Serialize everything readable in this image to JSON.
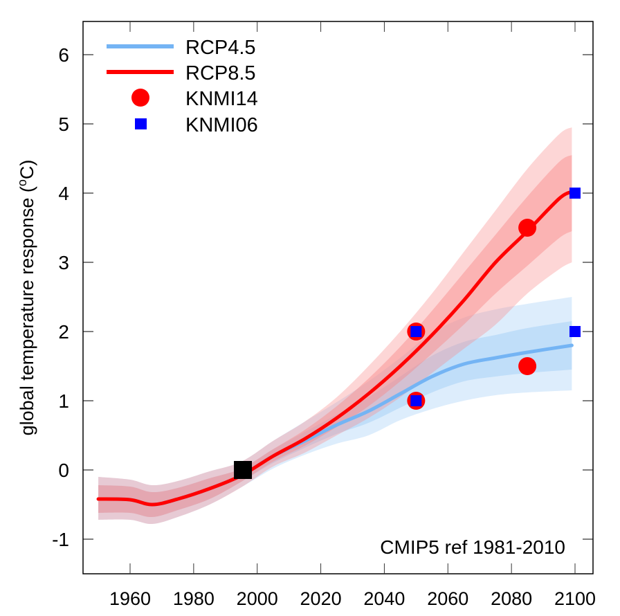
{
  "chart_data": {
    "type": "line",
    "title": "",
    "xlabel": "",
    "ylabel": "global temperature response (°C)",
    "ylabel_parts": {
      "pre": "global temperature response (",
      "sup": "o",
      "post": "C)"
    },
    "xlim": [
      1945,
      2106
    ],
    "ylim": [
      -1.5,
      6.5
    ],
    "xticks": [
      1960,
      1980,
      2000,
      2020,
      2040,
      2060,
      2080,
      2100
    ],
    "yticks": [
      -1,
      0,
      1,
      2,
      3,
      4,
      5,
      6
    ],
    "grid": false,
    "annotation": "CMIP5 ref 1981-2010",
    "legend_position": "top-left",
    "legend": [
      {
        "label": "RCP4.5",
        "kind": "line",
        "color": "#74b4f4"
      },
      {
        "label": "RCP8.5",
        "kind": "line",
        "color": "#ff0000"
      },
      {
        "label": "KNMI14",
        "kind": "circle",
        "color": "#ff0000"
      },
      {
        "label": "KNMI06",
        "kind": "square",
        "color": "#0000ff"
      }
    ],
    "series": [
      {
        "name": "RCP4.5",
        "color": "#74b4f4",
        "band_color": "#9ecbf7",
        "x": [
          1950,
          1960,
          1967,
          1975,
          1985,
          1995,
          2005,
          2015,
          2025,
          2035,
          2045,
          2055,
          2065,
          2075,
          2085,
          2099
        ],
        "y": [
          -0.42,
          -0.43,
          -0.5,
          -0.42,
          -0.27,
          -0.08,
          0.2,
          0.42,
          0.65,
          0.85,
          1.1,
          1.35,
          1.53,
          1.62,
          1.7,
          1.8
        ],
        "lo_outer": [
          -0.72,
          -0.72,
          -0.78,
          -0.68,
          -0.5,
          -0.25,
          0.02,
          0.22,
          0.38,
          0.5,
          0.72,
          0.88,
          1.0,
          1.08,
          1.12,
          1.15
        ],
        "lo_inner": [
          -0.62,
          -0.62,
          -0.68,
          -0.58,
          -0.42,
          -0.17,
          0.1,
          0.32,
          0.52,
          0.68,
          0.9,
          1.12,
          1.28,
          1.35,
          1.4,
          1.45
        ],
        "hi_inner": [
          -0.22,
          -0.24,
          -0.32,
          -0.26,
          -0.12,
          0.02,
          0.3,
          0.55,
          0.8,
          1.05,
          1.35,
          1.65,
          1.85,
          1.95,
          2.05,
          2.15
        ],
        "hi_outer": [
          -0.1,
          -0.14,
          -0.22,
          -0.16,
          -0.02,
          0.12,
          0.42,
          0.7,
          0.98,
          1.28,
          1.62,
          1.98,
          2.2,
          2.32,
          2.4,
          2.5
        ]
      },
      {
        "name": "RCP8.5",
        "color": "#ff0000",
        "band_color": "#f88a8a",
        "x": [
          1950,
          1960,
          1967,
          1975,
          1985,
          1995,
          2005,
          2015,
          2025,
          2035,
          2045,
          2055,
          2065,
          2075,
          2085,
          2095,
          2099
        ],
        "y": [
          -0.42,
          -0.43,
          -0.5,
          -0.42,
          -0.27,
          -0.08,
          0.2,
          0.45,
          0.75,
          1.1,
          1.5,
          1.95,
          2.45,
          3.0,
          3.45,
          3.92,
          4.02
        ],
        "lo_outer": [
          -0.72,
          -0.72,
          -0.78,
          -0.68,
          -0.5,
          -0.25,
          0.05,
          0.25,
          0.5,
          0.75,
          1.05,
          1.4,
          1.75,
          2.1,
          2.55,
          2.9,
          3.0
        ],
        "lo_inner": [
          -0.62,
          -0.62,
          -0.68,
          -0.58,
          -0.42,
          -0.17,
          0.12,
          0.35,
          0.62,
          0.92,
          1.28,
          1.68,
          2.1,
          2.55,
          2.95,
          3.35,
          3.45
        ],
        "hi_inner": [
          -0.22,
          -0.24,
          -0.32,
          -0.26,
          -0.12,
          0.02,
          0.3,
          0.58,
          0.92,
          1.32,
          1.78,
          2.3,
          2.85,
          3.4,
          3.95,
          4.45,
          4.55
        ],
        "hi_outer": [
          -0.1,
          -0.14,
          -0.22,
          -0.16,
          -0.02,
          0.12,
          0.42,
          0.7,
          1.05,
          1.5,
          2.0,
          2.55,
          3.15,
          3.75,
          4.35,
          4.85,
          4.95
        ]
      }
    ],
    "points": {
      "KNMI14": {
        "color": "#ff0000",
        "x": [
          2050,
          2050,
          2085,
          2085
        ],
        "y": [
          1.0,
          2.0,
          1.5,
          3.5
        ]
      },
      "KNMI06": {
        "color": "#0000ff",
        "x": [
          2050,
          2050,
          2100,
          2100
        ],
        "y": [
          1.0,
          2.0,
          2.0,
          4.0
        ]
      },
      "reference": {
        "color": "#000000",
        "x": [
          1995.5
        ],
        "y": [
          0.0
        ]
      }
    }
  }
}
